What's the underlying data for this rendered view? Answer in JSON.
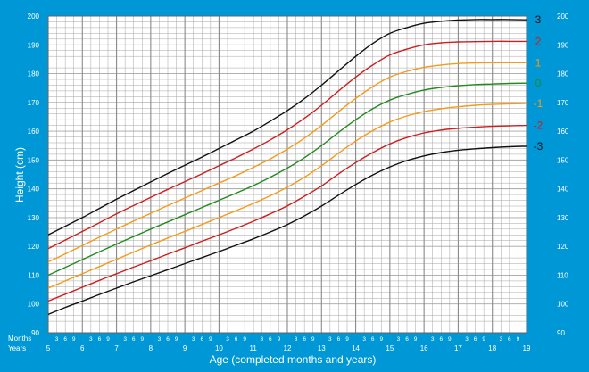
{
  "chart_data": {
    "type": "line",
    "title": "",
    "xlabel": "Age (completed months and years)",
    "ylabel": "Height (cm)",
    "row_label_months": "Months",
    "row_label_years": "Years",
    "xlim": [
      5,
      19
    ],
    "ylim": [
      90,
      200
    ],
    "y_ticks": [
      90,
      100,
      110,
      120,
      130,
      140,
      150,
      160,
      170,
      180,
      190,
      200
    ],
    "x_year_ticks": [
      "5",
      "6",
      "7",
      "8",
      "9",
      "10",
      "11",
      "12",
      "13",
      "14",
      "15",
      "16",
      "17",
      "18",
      "19"
    ],
    "x_month_ticks": [
      "3",
      "6",
      "9"
    ],
    "grid": true,
    "background_color": "#0097d6",
    "plot_color": "#ffffff",
    "grid_color": "#a5a5a5",
    "x": [
      5,
      5.5,
      6,
      6.5,
      7,
      7.5,
      8,
      8.5,
      9,
      9.5,
      10,
      10.5,
      11,
      11.5,
      12,
      12.5,
      13,
      13.5,
      14,
      14.5,
      15,
      15.5,
      16,
      16.5,
      17,
      17.5,
      18,
      18.5,
      19
    ],
    "series": [
      {
        "name": "3",
        "color": "#111111",
        "values": [
          124.0,
          127.0,
          130.0,
          133.2,
          136.4,
          139.4,
          142.4,
          145.3,
          148.2,
          151.0,
          154.0,
          157.0,
          160.0,
          163.5,
          167.2,
          171.3,
          176.0,
          181.0,
          186.0,
          190.5,
          194.0,
          196.0,
          197.5,
          198.2,
          198.6,
          198.8,
          198.8,
          198.8,
          198.7
        ]
      },
      {
        "name": "2",
        "color": "#cc1f1f",
        "values": [
          119.2,
          122.2,
          125.2,
          128.2,
          131.3,
          134.2,
          137.0,
          139.8,
          142.5,
          145.2,
          148.0,
          150.8,
          153.8,
          157.0,
          160.5,
          164.5,
          169.0,
          174.0,
          178.8,
          183.0,
          186.5,
          188.5,
          190.0,
          190.7,
          191.0,
          191.1,
          191.2,
          191.2,
          191.2
        ]
      },
      {
        "name": "1",
        "color": "#f59a1b",
        "values": [
          114.6,
          117.4,
          120.3,
          123.2,
          126.0,
          128.8,
          131.5,
          134.2,
          136.8,
          139.4,
          142.0,
          144.6,
          147.4,
          150.4,
          153.8,
          157.6,
          162.0,
          166.8,
          171.4,
          175.5,
          178.8,
          180.8,
          182.2,
          183.0,
          183.5,
          183.7,
          183.8,
          183.8,
          183.8
        ]
      },
      {
        "name": "0",
        "color": "#23891f",
        "values": [
          110.0,
          112.7,
          115.4,
          118.1,
          120.8,
          123.4,
          126.0,
          128.5,
          131.0,
          133.5,
          136.0,
          138.5,
          141.1,
          144.0,
          147.2,
          150.8,
          155.0,
          159.6,
          164.0,
          167.8,
          170.8,
          172.8,
          174.3,
          175.2,
          175.8,
          176.2,
          176.4,
          176.6,
          176.7
        ]
      },
      {
        "name": "-1",
        "color": "#f59a1b",
        "values": [
          105.5,
          108.0,
          110.5,
          113.0,
          115.5,
          118.0,
          120.5,
          122.9,
          125.2,
          127.6,
          130.0,
          132.4,
          134.9,
          137.6,
          140.6,
          144.0,
          148.0,
          152.4,
          156.6,
          160.2,
          163.2,
          165.3,
          166.8,
          167.8,
          168.5,
          169.0,
          169.3,
          169.5,
          169.6
        ]
      },
      {
        "name": "-2",
        "color": "#cc1f1f",
        "values": [
          101.0,
          103.4,
          105.8,
          108.2,
          110.5,
          112.8,
          115.0,
          117.3,
          119.5,
          121.8,
          124.0,
          126.3,
          128.7,
          131.3,
          134.1,
          137.4,
          141.0,
          145.2,
          149.1,
          152.6,
          155.6,
          157.8,
          159.4,
          160.4,
          161.0,
          161.4,
          161.7,
          161.9,
          162.0
        ]
      },
      {
        "name": "-3",
        "color": "#111111",
        "values": [
          96.4,
          98.8,
          101.0,
          103.3,
          105.5,
          107.7,
          109.8,
          111.9,
          114.0,
          116.1,
          118.2,
          120.4,
          122.6,
          125.0,
          127.6,
          130.6,
          134.0,
          137.8,
          141.5,
          144.8,
          147.6,
          149.8,
          151.4,
          152.6,
          153.4,
          153.9,
          154.3,
          154.6,
          154.8
        ]
      }
    ]
  }
}
